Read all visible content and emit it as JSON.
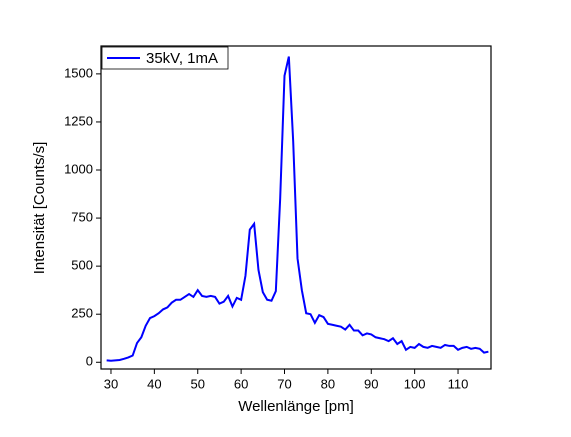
{
  "chart_data": {
    "type": "line",
    "x_label": "Wellenlänge [pm]",
    "y_label": "Intensität [Counts/s]",
    "x": [
      29,
      30,
      31,
      32,
      33,
      34,
      35,
      36,
      37,
      38,
      39,
      40,
      41,
      42,
      43,
      44,
      45,
      46,
      47,
      48,
      49,
      50,
      51,
      52,
      53,
      54,
      55,
      56,
      57,
      58,
      59,
      60,
      61,
      62,
      63,
      64,
      65,
      66,
      67,
      68,
      69,
      70,
      71,
      72,
      73,
      74,
      75,
      76,
      77,
      78,
      79,
      80,
      81,
      82,
      83,
      84,
      85,
      86,
      87,
      88,
      89,
      90,
      91,
      92,
      93,
      94,
      95,
      96,
      97,
      98,
      99,
      100,
      101,
      102,
      103,
      104,
      105,
      106,
      107,
      108,
      109,
      110,
      111,
      112,
      113,
      114,
      115,
      116,
      117
    ],
    "series": [
      {
        "name": "35kV, 1mA",
        "color": "#0000ff",
        "values": [
          10,
          8,
          10,
          12,
          18,
          25,
          35,
          100,
          130,
          190,
          230,
          240,
          255,
          275,
          285,
          310,
          325,
          325,
          340,
          355,
          340,
          375,
          345,
          340,
          345,
          340,
          305,
          315,
          345,
          290,
          335,
          325,
          450,
          690,
          720,
          480,
          365,
          325,
          320,
          370,
          850,
          1490,
          1590,
          1150,
          540,
          375,
          255,
          250,
          205,
          245,
          235,
          200,
          195,
          190,
          185,
          170,
          195,
          165,
          165,
          140,
          150,
          145,
          130,
          125,
          120,
          110,
          125,
          95,
          110,
          65,
          80,
          75,
          95,
          80,
          75,
          85,
          80,
          75,
          90,
          85,
          85,
          65,
          75,
          80,
          70,
          75,
          70,
          50,
          55
        ]
      }
    ],
    "xlim": [
      27.7,
      117.6
    ],
    "ylim": [
      -35,
      1645
    ],
    "xticks": [
      30,
      40,
      50,
      60,
      70,
      80,
      90,
      100,
      110
    ],
    "yticks": [
      0,
      250,
      500,
      750,
      1000,
      1250,
      1500
    ],
    "legend": "upper left"
  }
}
